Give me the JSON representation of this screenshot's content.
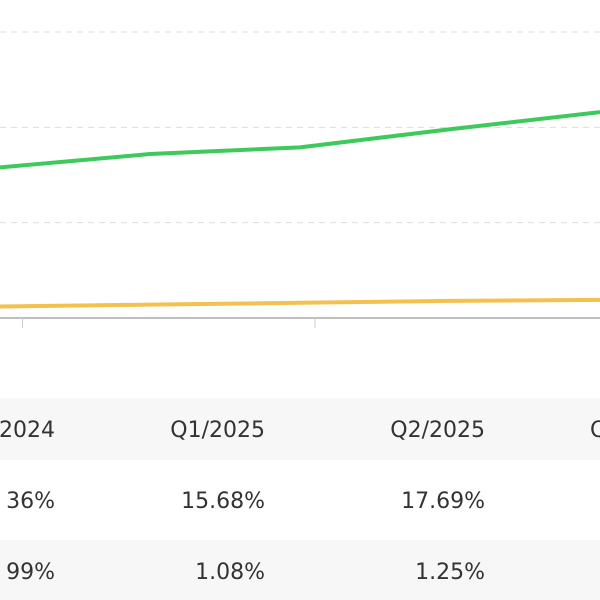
{
  "chart_data": {
    "type": "line",
    "x": [
      0,
      1,
      2,
      3,
      4
    ],
    "xlim": [
      0,
      4
    ],
    "xticks": [
      0.15,
      2.1
    ],
    "ylim": [
      0,
      3
    ],
    "grid_values": [
      1,
      2,
      3
    ],
    "grid": true,
    "series": [
      {
        "color": "#3ec95c",
        "values": [
          1.58,
          1.72,
          1.79,
          1.98,
          2.16
        ]
      },
      {
        "color": "#f4c04e",
        "values": [
          0.12,
          0.14,
          0.16,
          0.18,
          0.19
        ]
      }
    ]
  },
  "table": {
    "header": [
      "2024",
      "Q1/2025",
      "Q2/2025",
      "Q"
    ],
    "rows": [
      [
        "36%",
        "15.68%",
        "17.69%"
      ],
      [
        "99%",
        "1.08%",
        "1.25%"
      ]
    ]
  }
}
